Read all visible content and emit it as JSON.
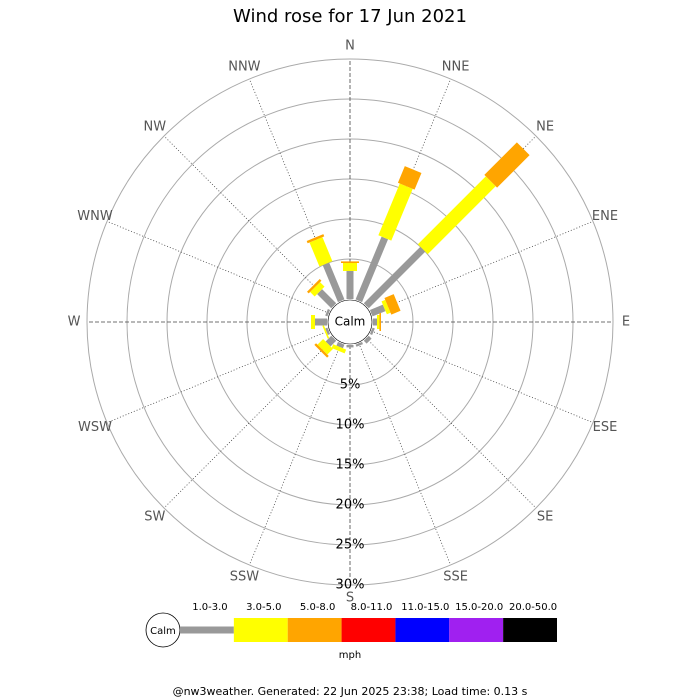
{
  "chart_data": {
    "type": "windrose",
    "title": "Wind rose for 17 Jun 2021",
    "categories": [
      "N",
      "NNE",
      "NE",
      "ENE",
      "E",
      "ESE",
      "SE",
      "SSE",
      "S",
      "SSW",
      "SW",
      "WSW",
      "W",
      "WNW",
      "NW",
      "NNW"
    ],
    "center_label": "Calm",
    "unit": "mph",
    "rlim": [
      0,
      30
    ],
    "rticks": [
      {
        "value": 5,
        "label": "5%"
      },
      {
        "value": 10,
        "label": "10%"
      },
      {
        "value": 15,
        "label": "15%"
      },
      {
        "value": 20,
        "label": "20%"
      },
      {
        "value": 25,
        "label": "25%"
      },
      {
        "value": 30,
        "label": "30%"
      }
    ],
    "series": [
      {
        "name": "1.0-3.0",
        "color": "#999999",
        "values": [
          3.5,
          8.5,
          10,
          1.75,
          0.5,
          0.3,
          0.5,
          0.3,
          0.3,
          0.5,
          1,
          0.3,
          1.5,
          0.3,
          2.5,
          5
        ]
      },
      {
        "name": "3.0-5.0",
        "color": "#ffff00",
        "values": [
          1,
          7,
          12,
          0.5,
          0.3,
          0,
          0,
          0,
          0,
          0.5,
          1,
          0.2,
          0.5,
          0,
          0.8,
          3.25
        ]
      },
      {
        "name": "5.0-8.0",
        "color": "#ffa500",
        "values": [
          0.2,
          2.25,
          5.75,
          1.25,
          0.2,
          0,
          0,
          0,
          0,
          0,
          0.3,
          0,
          0,
          0,
          0.3,
          0.3
        ]
      },
      {
        "name": "8.0-11.0",
        "color": "#ff0000",
        "values": [
          0,
          0,
          0,
          0,
          0,
          0,
          0,
          0,
          0,
          0,
          0,
          0,
          0,
          0,
          0,
          0
        ]
      },
      {
        "name": "11.0-15.0",
        "color": "#0000ff",
        "values": [
          0,
          0,
          0,
          0,
          0,
          0,
          0,
          0,
          0,
          0,
          0,
          0,
          0,
          0,
          0,
          0
        ]
      },
      {
        "name": "15.0-20.0",
        "color": "#a020f0",
        "values": [
          0,
          0,
          0,
          0,
          0,
          0,
          0,
          0,
          0,
          0,
          0,
          0,
          0,
          0,
          0,
          0
        ]
      },
      {
        "name": "20.0-50.0",
        "color": "#000000",
        "values": [
          0,
          0,
          0,
          0,
          0,
          0,
          0,
          0,
          0,
          0,
          0,
          0,
          0,
          0,
          0,
          0
        ]
      }
    ]
  },
  "footer": "@nw3weather. Generated: 22 Jun 2025 23:38; Load time: 0.13 s"
}
